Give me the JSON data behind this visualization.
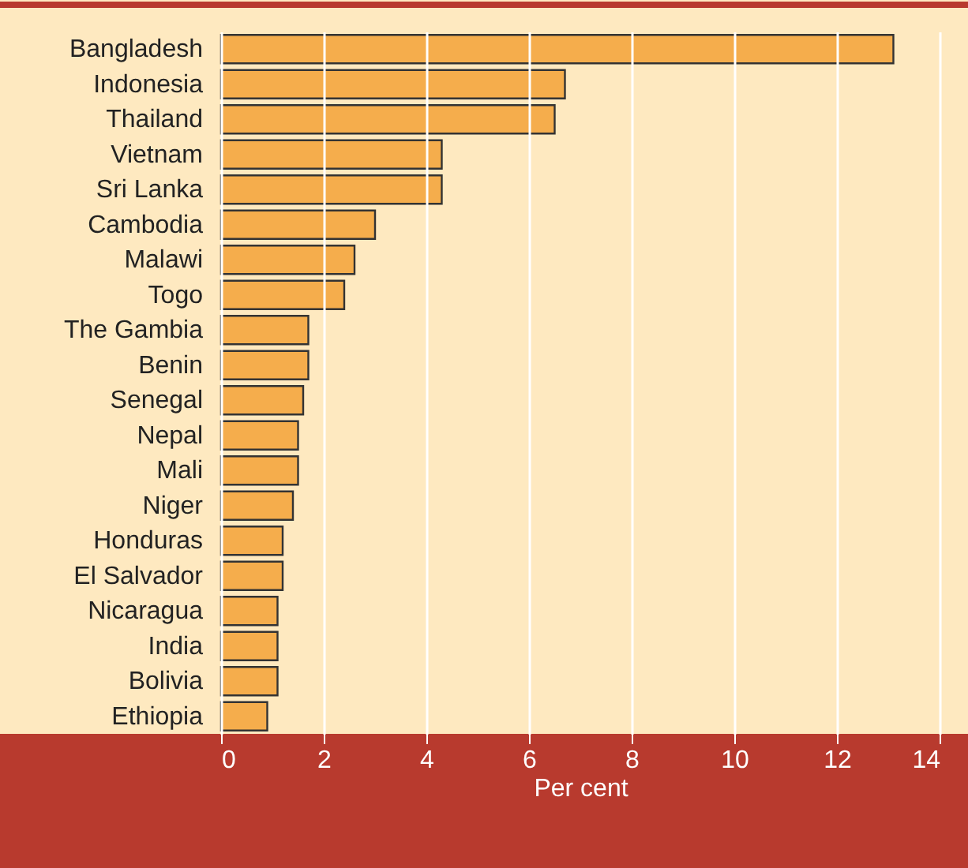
{
  "chart_data": {
    "type": "bar",
    "orientation": "horizontal",
    "xlabel": "Per cent",
    "categories": [
      "Bangladesh",
      "Indonesia",
      "Thailand",
      "Vietnam",
      "Sri Lanka",
      "Cambodia",
      "Malawi",
      "Togo",
      "The Gambia",
      "Benin",
      "Senegal",
      "Nepal",
      "Mali",
      "Niger",
      "Honduras",
      "El Salvador",
      "Nicaragua",
      "India",
      "Bolivia",
      "Ethiopia"
    ],
    "values": [
      13.1,
      6.7,
      6.5,
      4.3,
      4.3,
      3.0,
      2.6,
      2.4,
      1.7,
      1.7,
      1.6,
      1.5,
      1.5,
      1.4,
      1.2,
      1.2,
      1.1,
      1.1,
      1.1,
      0.9
    ],
    "color": "#f5ad4c",
    "xlim": [
      0,
      14
    ],
    "xticks": [
      0,
      2,
      4,
      6,
      8,
      10,
      12,
      14
    ],
    "grid": "x"
  }
}
